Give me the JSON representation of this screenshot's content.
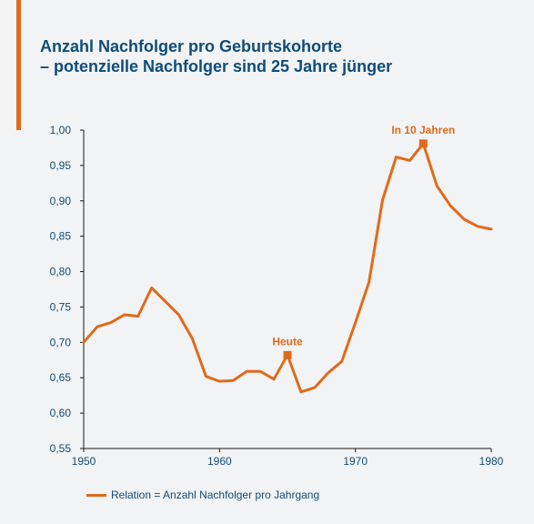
{
  "title": {
    "line1": "Anzahl Nachfolger pro Geburtskohorte",
    "line2": "– potenzielle Nachfolger sind 25 Jahre jünger"
  },
  "colors": {
    "accent": "#e06a1b",
    "title": "#0f4c7a",
    "axis": "#1a1a1a",
    "background": "#f2f3f4"
  },
  "legend": {
    "label": "Relation = Anzahl Nachfolger pro Jahrgang"
  },
  "chart_data": {
    "type": "line",
    "xlabel": "",
    "ylabel": "",
    "xlim": [
      1950,
      1980
    ],
    "ylim": [
      0.55,
      1.0
    ],
    "x_ticks": [
      1950,
      1960,
      1970,
      1980
    ],
    "y_ticks": [
      "0,55",
      "0,60",
      "0,65",
      "0,70",
      "0,75",
      "0,80",
      "0,85",
      "0,90",
      "0,95",
      "1,00"
    ],
    "grid": false,
    "legend_position": "bottom-left",
    "series": [
      {
        "name": "Relation = Anzahl Nachfolger pro Jahrgang",
        "x": [
          1950,
          1951,
          1952,
          1953,
          1954,
          1955,
          1956,
          1957,
          1958,
          1959,
          1960,
          1961,
          1962,
          1963,
          1964,
          1965,
          1966,
          1967,
          1968,
          1969,
          1970,
          1971,
          1972,
          1973,
          1974,
          1975,
          1976,
          1977,
          1978,
          1979,
          1980
        ],
        "y": [
          0.7,
          0.722,
          0.728,
          0.739,
          0.737,
          0.777,
          0.758,
          0.739,
          0.705,
          0.652,
          0.645,
          0.646,
          0.659,
          0.659,
          0.648,
          0.682,
          0.63,
          0.636,
          0.657,
          0.673,
          0.728,
          0.785,
          0.901,
          0.962,
          0.957,
          0.981,
          0.921,
          0.893,
          0.874,
          0.864,
          0.86
        ]
      }
    ],
    "annotations": [
      {
        "label": "Heute",
        "x": 1965,
        "y": 0.682
      },
      {
        "label": "In 10 Jahren",
        "x": 1975,
        "y": 0.981
      }
    ]
  }
}
